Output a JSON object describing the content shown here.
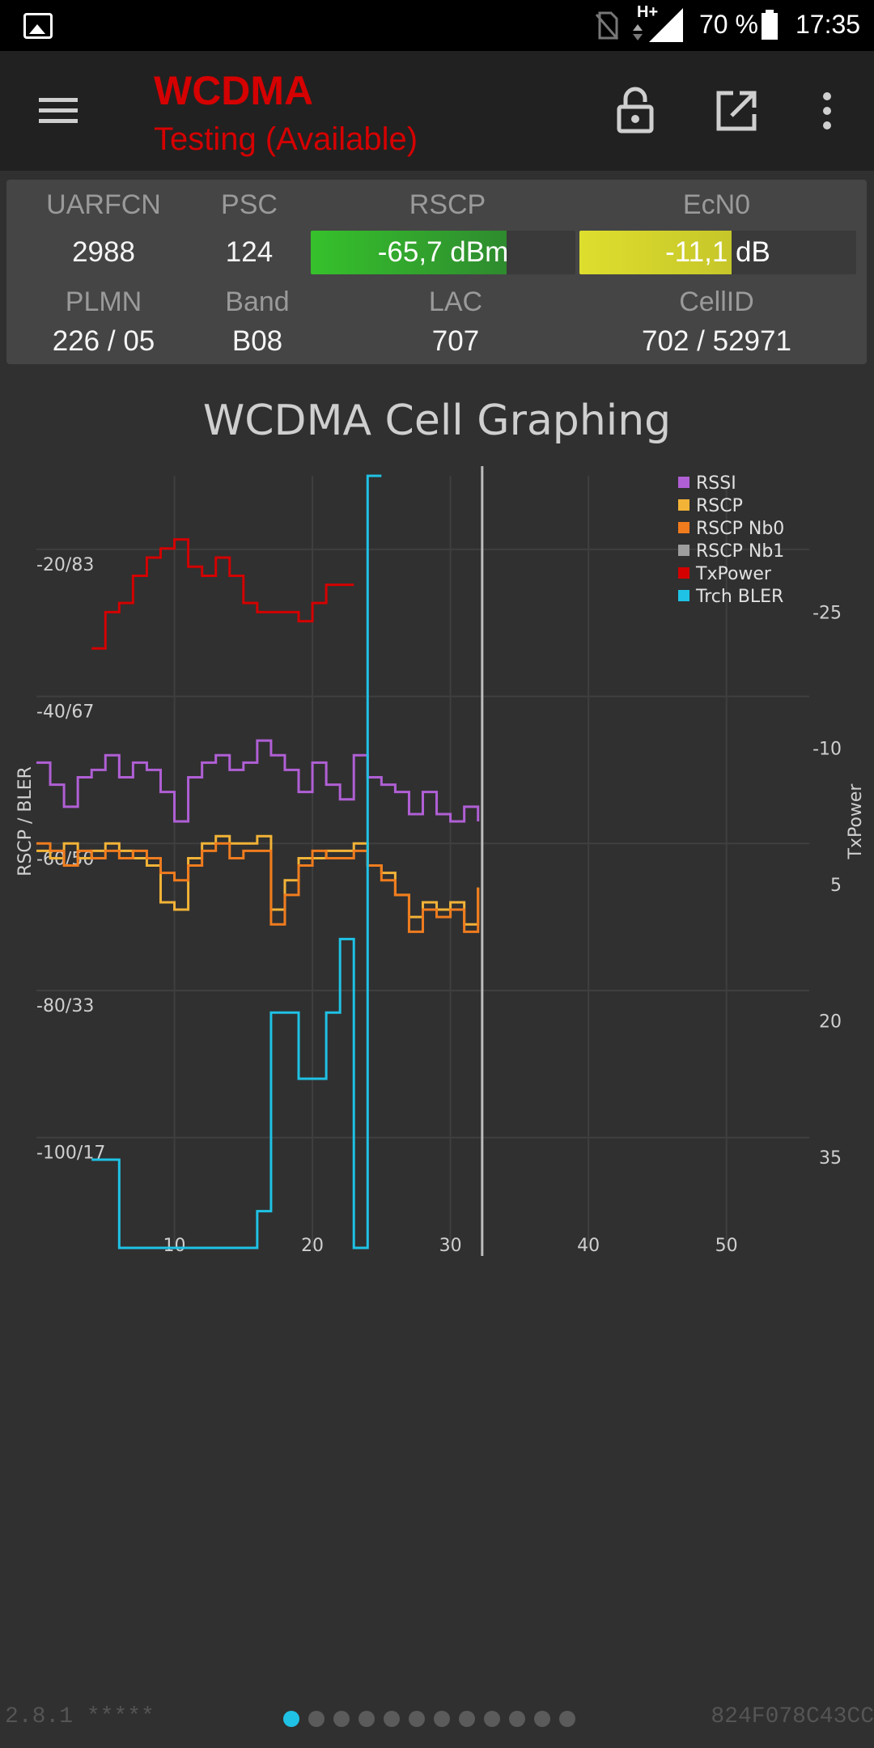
{
  "status_bar": {
    "network_badge": "H+",
    "battery": "70 %",
    "time": "17:35",
    "icons": [
      "image-icon",
      "no-sim-icon",
      "signal-icon",
      "battery-icon"
    ]
  },
  "app_bar": {
    "title": "WCDMA",
    "subtitle": "Testing (Available)",
    "title_color": "#d50000",
    "actions": [
      "menu-icon",
      "lock-icon",
      "open-external-icon",
      "more-icon"
    ]
  },
  "cell_info": {
    "row1": {
      "labels": [
        "UARFCN",
        "PSC",
        "RSCP",
        "EcN0"
      ],
      "uarfcn": "2988",
      "psc": "124",
      "rscp": {
        "text": "-65,7 dBm",
        "fill": 0.74,
        "color": "#36c12c"
      },
      "ecn0": {
        "text": "-11,1 dB",
        "fill": 0.55,
        "color": "#c6c62a"
      }
    },
    "row2": {
      "labels": [
        "PLMN",
        "Band",
        "LAC",
        "CellID"
      ],
      "plmn": "226 / 05",
      "band": "B08",
      "lac": "707",
      "cellid": "702 / 52971"
    }
  },
  "graph": {
    "title": "WCDMA Cell Graphing"
  },
  "chart_data": {
    "type": "line",
    "title": "WCDMA Cell Graphing",
    "ylabel": "RSCP / BLER",
    "y2label": "TxPower",
    "xlim": [
      0,
      56
    ],
    "ylim": [
      -115,
      -10
    ],
    "y2lim": [
      -40,
      45
    ],
    "x_ticks": [
      10,
      20,
      30,
      40,
      50
    ],
    "y_ticks": [
      -100,
      -80,
      -60,
      -40,
      -20
    ],
    "y_tick_labels": [
      "-100/17",
      "-80/33",
      "-60/50",
      "-40/67",
      "-20/83"
    ],
    "y2_ticks": [
      -25,
      -10,
      5,
      20,
      35
    ],
    "cursor_x": 32.3,
    "grid": true,
    "legend_position": "top-right",
    "series": [
      {
        "name": "RSSI",
        "axis": "left",
        "color": "#b05fd5",
        "x": [
          0,
          1,
          2,
          3,
          4,
          5,
          6,
          7,
          8,
          9,
          10,
          11,
          12,
          13,
          14,
          15,
          16,
          17,
          18,
          19,
          20,
          21,
          22,
          23,
          24,
          25,
          26,
          27,
          28,
          29,
          30,
          31,
          32
        ],
        "y": [
          -49,
          -52,
          -55,
          -51,
          -50,
          -48,
          -51,
          -49,
          -50,
          -53,
          -57,
          -51,
          -49,
          -48,
          -50,
          -49,
          -46,
          -48,
          -50,
          -53,
          -49,
          -52,
          -54,
          -48,
          -51,
          -52,
          -53,
          -56,
          -53,
          -56,
          -57,
          -55,
          -57
        ]
      },
      {
        "name": "RSCP",
        "axis": "left",
        "color": "#f2b337",
        "x": [
          0,
          1,
          2,
          3,
          4,
          5,
          6,
          7,
          8,
          9,
          10,
          11,
          12,
          13,
          14,
          15,
          16,
          17,
          18,
          19,
          20,
          21,
          22,
          23,
          24,
          25,
          26,
          27,
          28,
          29,
          30,
          31,
          32
        ],
        "y": [
          -61,
          -62,
          -60,
          -62,
          -61,
          -60,
          -61,
          -62,
          -63,
          -68,
          -69,
          -62,
          -60,
          -59,
          -60,
          -60,
          -59,
          -69,
          -65,
          -62,
          -62,
          -61,
          -61,
          -60,
          -63,
          -64,
          -67,
          -70,
          -68,
          -69,
          -68,
          -71,
          -66
        ]
      },
      {
        "name": "RSCP Nb0",
        "axis": "left",
        "color": "#f07c1e",
        "x": [
          0,
          1,
          2,
          3,
          4,
          5,
          6,
          7,
          8,
          9,
          10,
          11,
          12,
          13,
          14,
          15,
          16,
          17,
          18,
          19,
          20,
          21,
          22,
          23,
          24,
          25,
          26,
          27,
          28,
          29,
          30,
          31,
          32
        ],
        "y": [
          -60,
          -61,
          -63,
          -61,
          -62,
          -61,
          -62,
          -61,
          -62,
          -64,
          -65,
          -63,
          -61,
          -60,
          -62,
          -61,
          -61,
          -71,
          -67,
          -63,
          -61,
          -62,
          -62,
          -61,
          -63,
          -65,
          -67,
          -72,
          -69,
          -70,
          -69,
          -72,
          -66
        ]
      },
      {
        "name": "RSCP Nb1",
        "axis": "left",
        "color": "#9e9e9e",
        "x": [],
        "y": []
      },
      {
        "name": "TxPower",
        "axis": "right",
        "color": "#d40000",
        "x": [
          4,
          5,
          6,
          7,
          8,
          9,
          10,
          11,
          12,
          13,
          14,
          15,
          16,
          19,
          20,
          21,
          22,
          23
        ],
        "y": [
          -21,
          -25,
          -26,
          -29,
          -31,
          -32,
          -33,
          -30,
          -29,
          -31,
          -29,
          -26,
          -25,
          -24,
          -26,
          -28,
          -28,
          -28
        ]
      },
      {
        "name": "Trch BLER",
        "axis": "left",
        "color": "#1fc2e5",
        "x": [
          4,
          5,
          6,
          7,
          8,
          10,
          16,
          17,
          18,
          19,
          20,
          21,
          22,
          23,
          24,
          25
        ],
        "y": [
          -103,
          -103,
          -115,
          -115,
          -115,
          -115,
          -110,
          -83,
          -83,
          -92,
          -92,
          -83,
          -73,
          -115,
          -10,
          -10
        ]
      }
    ]
  },
  "footer": {
    "version": "2.8.1 *****",
    "device_id": "824F078C43CC",
    "pages": 12,
    "active_page": 0,
    "active_dot_color": "#1fc2e5"
  }
}
